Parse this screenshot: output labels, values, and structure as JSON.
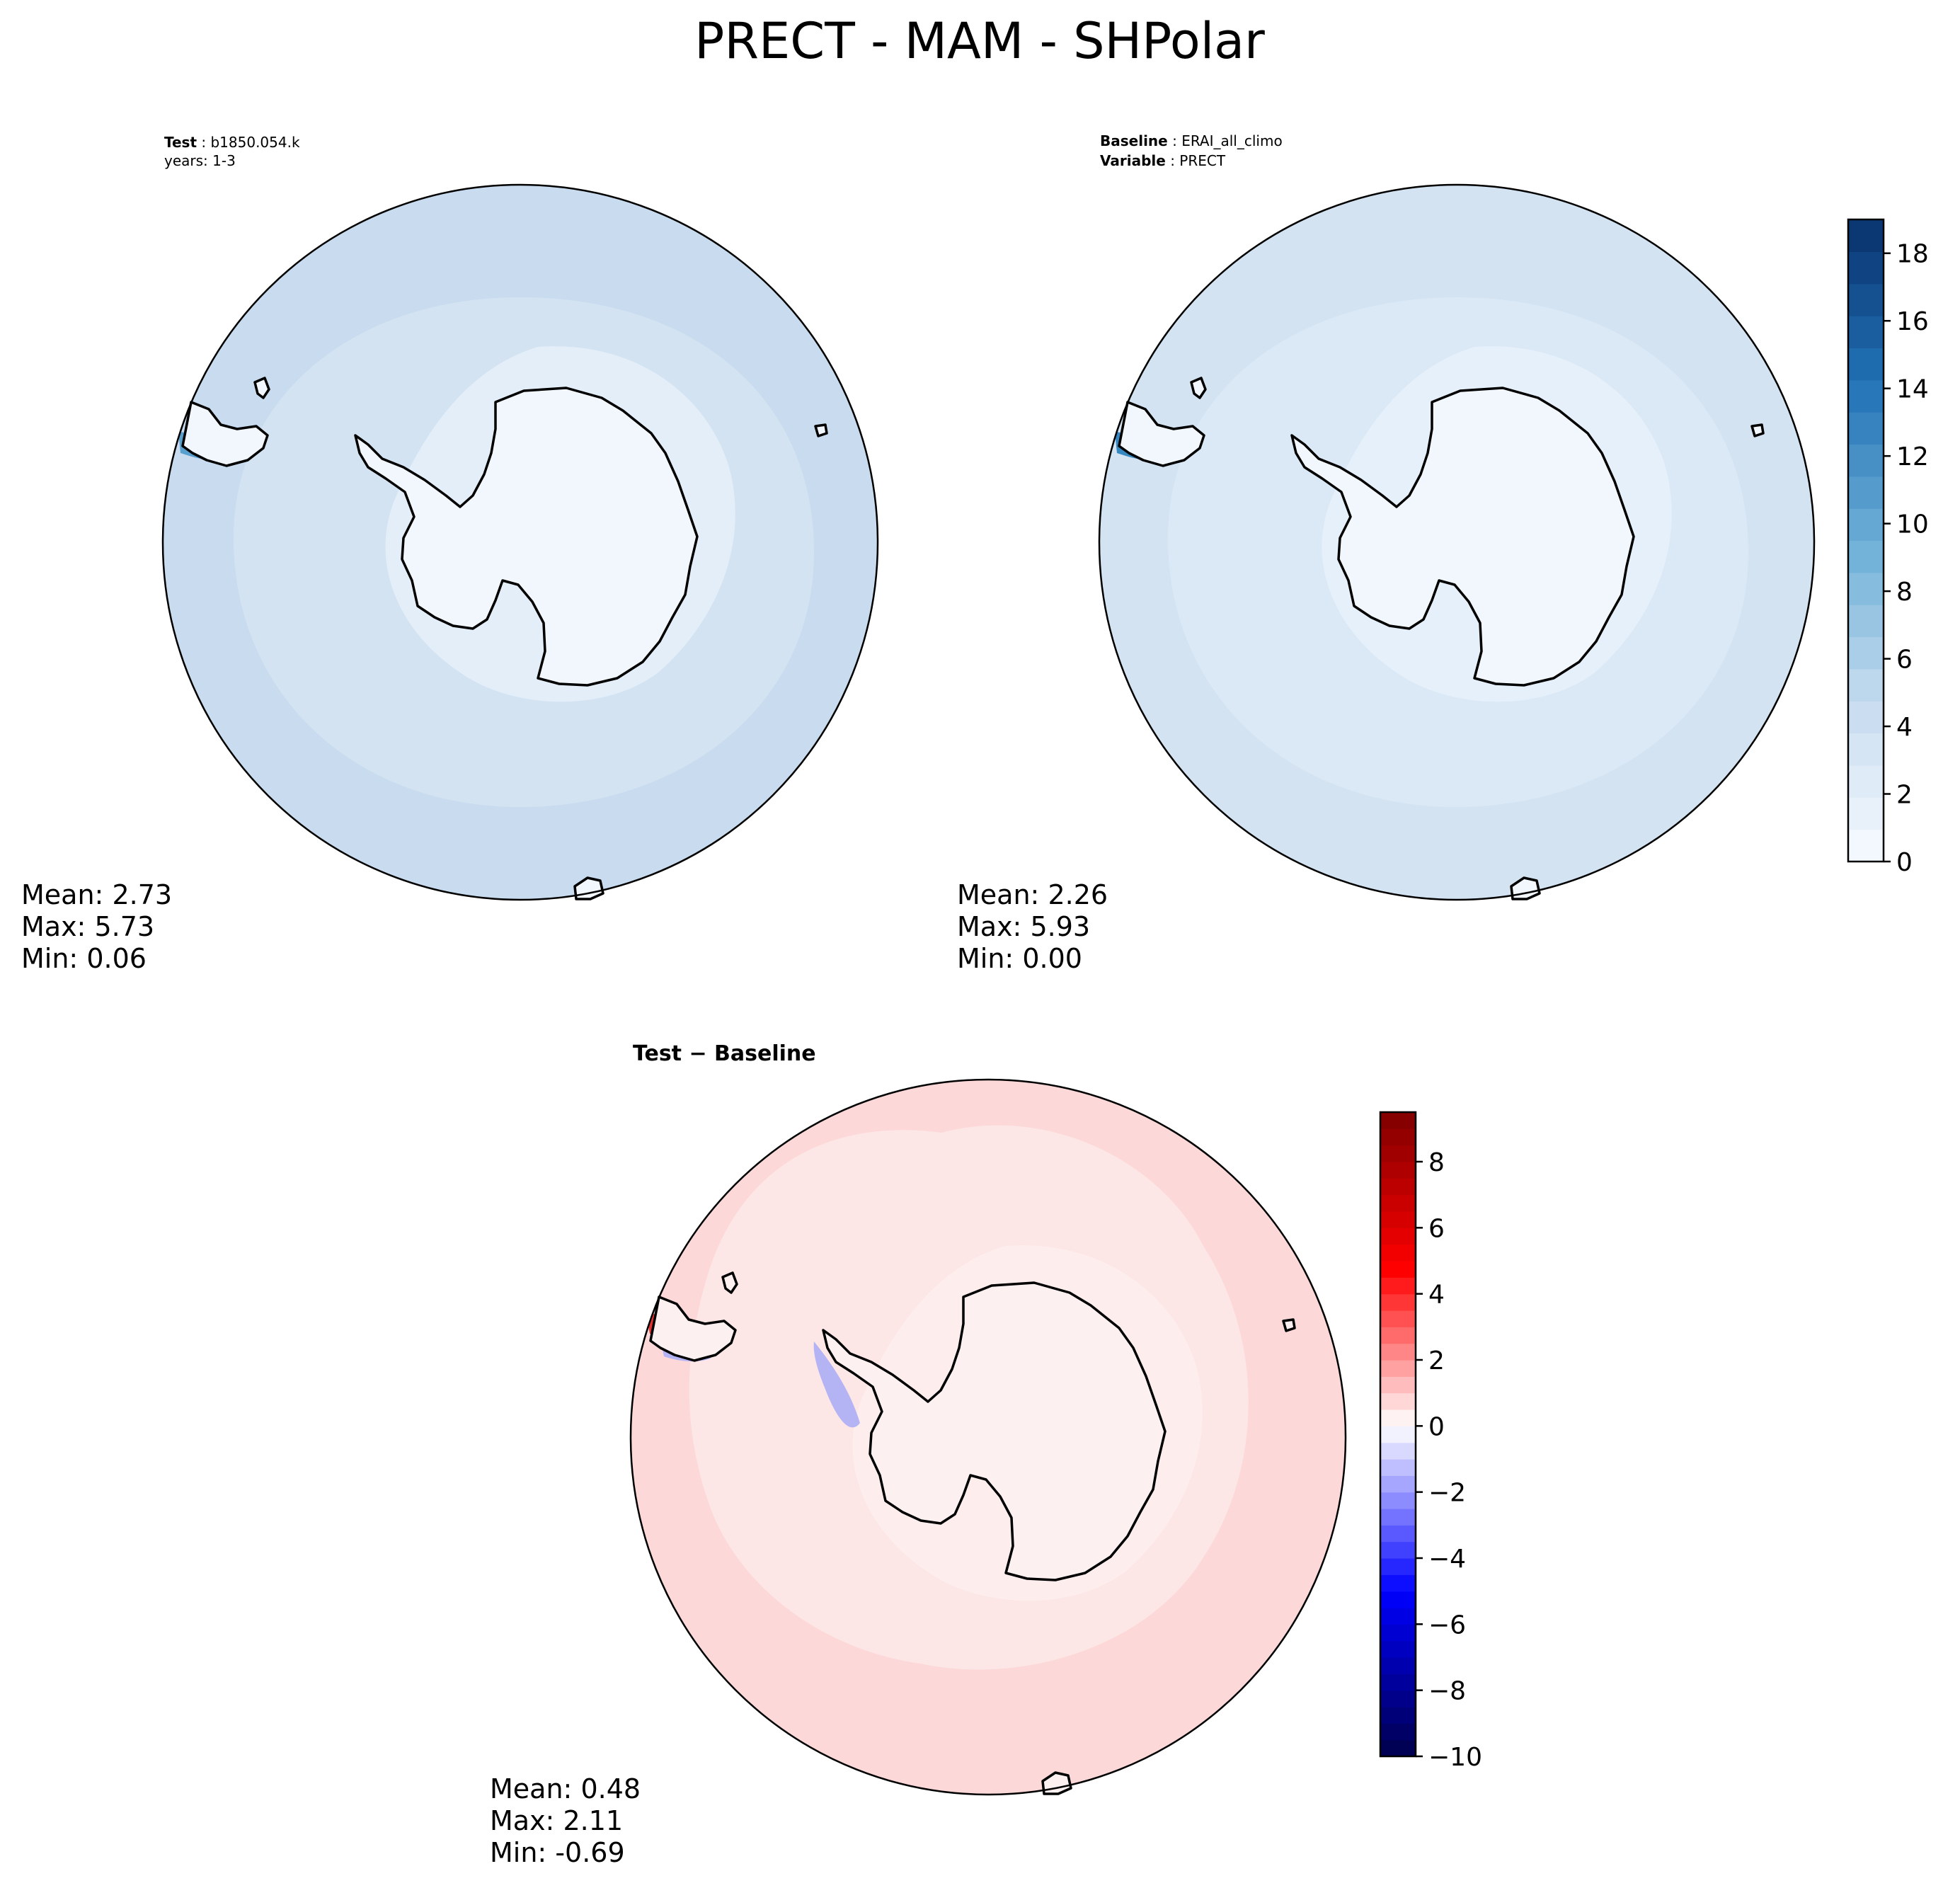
{
  "title": "PRECT - MAM - SHPolar",
  "chart_data": [
    {
      "type": "heatmap",
      "projection": "south-polar-stereographic",
      "header_lines": [
        {
          "bold": "Test",
          "sep": " : ",
          "text": "b1850.054.k"
        },
        {
          "bold": "",
          "sep": "",
          "text": "years: 1-3"
        }
      ],
      "stats": {
        "mean": "2.73",
        "max": "5.73",
        "min": "0.06"
      },
      "stats_labels": {
        "mean": "Mean:",
        "max": "Max:",
        "min": "Min:"
      },
      "colormap": "Blues",
      "colors": {
        "land": "#f1f7fd",
        "shelf": "#e3eef9",
        "ocean": "#d3e3f2",
        "band": "#c9dcef",
        "high": "#5aa0cf"
      }
    },
    {
      "type": "heatmap",
      "projection": "south-polar-stereographic",
      "header_lines": [
        {
          "bold": "Baseline",
          "sep": " : ",
          "text": "ERAI_all_climo"
        },
        {
          "bold": "Variable",
          "sep": " : ",
          "text": "PRECT"
        }
      ],
      "stats": {
        "mean": "2.26",
        "max": "5.93",
        "min": "0.00"
      },
      "stats_labels": {
        "mean": "Mean:",
        "max": "Max:",
        "min": "Min:"
      },
      "colormap": "Blues",
      "colors": {
        "land": "#f1f7fd",
        "shelf": "#e6f0fa",
        "ocean": "#dbe9f6",
        "band": "#d3e3f2",
        "high": "#3787c0"
      },
      "colorbar": {
        "min": 0,
        "max": 19,
        "levels": 20,
        "ticks": [
          0,
          2,
          4,
          6,
          8,
          10,
          12,
          14,
          16,
          18
        ],
        "tick_labels": [
          "0",
          "2",
          "4",
          "6",
          "8",
          "10",
          "12",
          "14",
          "16",
          "18"
        ]
      }
    },
    {
      "type": "heatmap",
      "projection": "south-polar-stereographic",
      "header_lines": [
        {
          "bold": "Test − Baseline",
          "sep": "",
          "text": ""
        }
      ],
      "stats": {
        "mean": "0.48",
        "max": "2.11",
        "min": "-0.69"
      },
      "stats_labels": {
        "mean": "Mean:",
        "max": "Max:",
        "min": "Min:"
      },
      "colormap": "seismic",
      "colors": {
        "land": "#fdf0f0",
        "shelf": "#fdeded",
        "ocean": "#fcd8d8",
        "band": "#fde6e6",
        "high": "#e63232",
        "low": "#b4b4f5"
      },
      "colorbar": {
        "min": -10,
        "max": 9.5,
        "levels": 39,
        "ticks": [
          -10,
          -8,
          -6,
          -4,
          -2,
          0,
          2,
          4,
          6,
          8
        ],
        "tick_labels": [
          "−10",
          "−8",
          "−6",
          "−4",
          "−2",
          "0",
          "2",
          "4",
          "6",
          "8"
        ]
      }
    }
  ]
}
